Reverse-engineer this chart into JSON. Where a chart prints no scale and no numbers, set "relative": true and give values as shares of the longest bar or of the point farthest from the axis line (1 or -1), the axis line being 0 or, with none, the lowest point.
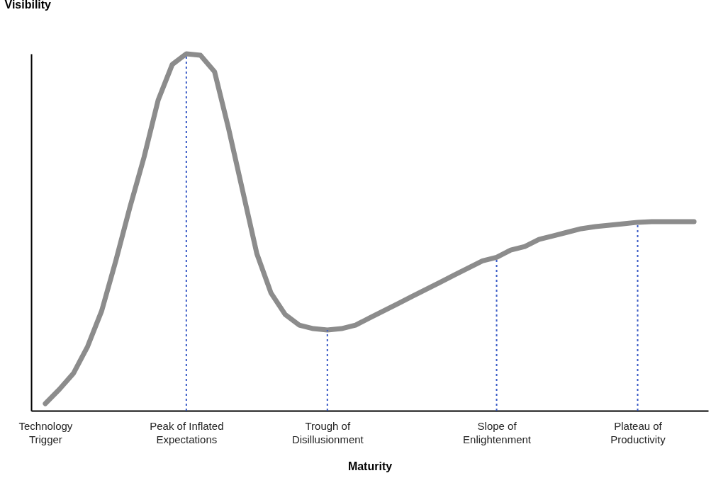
{
  "chart_data": {
    "type": "line",
    "relative": true,
    "xlabel": "Maturity",
    "ylabel": "Visibility",
    "categories": [
      "Technology Trigger",
      null,
      null,
      null,
      null,
      null,
      null,
      null,
      null,
      null,
      "Peak of Inflated Expectations",
      null,
      null,
      null,
      null,
      null,
      null,
      null,
      null,
      null,
      "Trough of Disillusionment",
      null,
      null,
      null,
      null,
      null,
      null,
      null,
      null,
      null,
      null,
      null,
      "Slope of Enlightenment",
      null,
      null,
      null,
      null,
      null,
      null,
      null,
      null,
      null,
      "Plateau of Productivity",
      null,
      null,
      null,
      null
    ],
    "series": [
      {
        "color": "#8c8c8c",
        "values": [
          0.02,
          0.06,
          0.105,
          0.18,
          0.28,
          0.42,
          0.57,
          0.71,
          0.87,
          0.97,
          1.0,
          0.996,
          0.95,
          0.79,
          0.615,
          0.44,
          0.33,
          0.27,
          0.24,
          0.23,
          0.226,
          0.23,
          0.24,
          0.26,
          0.28,
          0.3,
          0.32,
          0.34,
          0.36,
          0.38,
          0.4,
          0.42,
          0.43,
          0.45,
          0.46,
          0.48,
          0.49,
          0.5,
          0.51,
          0.516,
          0.52,
          0.524,
          0.528,
          0.53,
          0.53,
          0.53,
          0.53
        ]
      }
    ],
    "ref_lines": [
      {
        "axis": "x",
        "value": "Peak of Inflated Expectations",
        "color": "#3a5bc7",
        "line_style": "dotted"
      },
      {
        "axis": "x",
        "value": "Trough of Disillusionment",
        "color": "#3a5bc7",
        "line_style": "dotted"
      },
      {
        "axis": "x",
        "value": "Slope of Enlightenment",
        "color": "#3a5bc7",
        "line_style": "dotted"
      },
      {
        "axis": "x",
        "value": "Plateau of Productivity",
        "color": "#3a5bc7",
        "line_style": "dotted"
      }
    ],
    "grid": false,
    "line_style": "solid"
  }
}
